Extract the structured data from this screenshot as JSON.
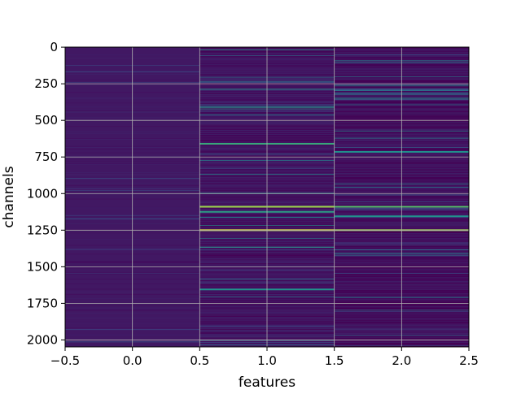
{
  "chart_data": {
    "type": "heatmap",
    "title": "",
    "xlabel": "features",
    "ylabel": "channels",
    "xlim": [
      -0.5,
      2.5
    ],
    "ylim": [
      2047.5,
      -0.5
    ],
    "y_inverted": true,
    "grid": true,
    "colormap": "viridis",
    "x_ticks": [
      "−0.5",
      "0.0",
      "0.5",
      "1.0",
      "1.5",
      "2.0",
      "2.5"
    ],
    "x_tick_values": [
      -0.5,
      0.0,
      0.5,
      1.0,
      1.5,
      2.0,
      2.5
    ],
    "y_ticks": [
      "0",
      "250",
      "500",
      "750",
      "1000",
      "1250",
      "1500",
      "1750",
      "2000"
    ],
    "y_tick_values": [
      0,
      250,
      500,
      750,
      1000,
      1250,
      1500,
      1750,
      2000
    ],
    "columns": [
      0,
      1,
      2
    ],
    "n_channels": 2048,
    "bright_channels": [
      {
        "channel": 1085,
        "column": 1,
        "value": 0.85
      },
      {
        "channel": 1085,
        "column": 2,
        "value": 0.7
      },
      {
        "channel": 1245,
        "column": 1,
        "value": 0.95
      },
      {
        "channel": 1245,
        "column": 2,
        "value": 0.85
      },
      {
        "channel": 655,
        "column": 1,
        "value": 0.6
      },
      {
        "channel": 710,
        "column": 2,
        "value": 0.5
      },
      {
        "channel": 1120,
        "column": 1,
        "value": 0.55
      },
      {
        "channel": 1150,
        "column": 2,
        "value": 0.5
      },
      {
        "channel": 1650,
        "column": 1,
        "value": 0.5
      }
    ]
  }
}
